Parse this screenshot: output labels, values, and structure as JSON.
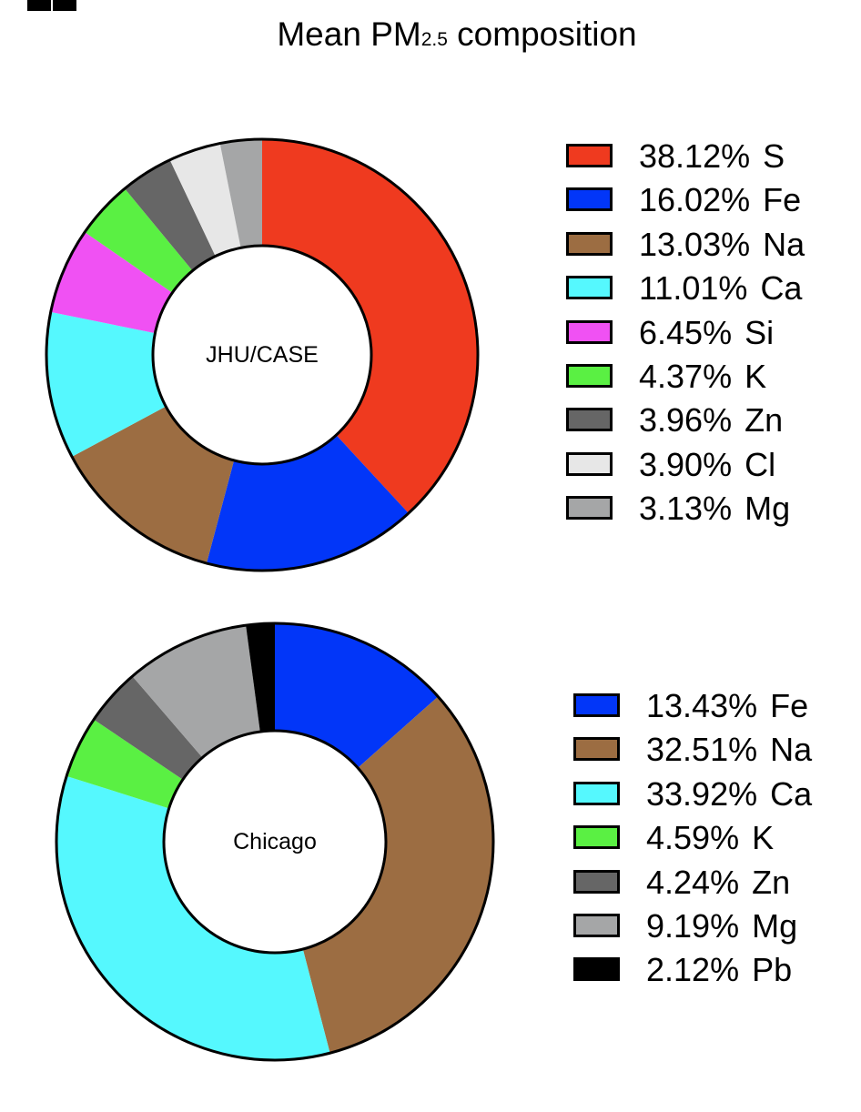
{
  "title": {
    "main": "Mean PM",
    "subscript": "2.5",
    "rest": " composition"
  },
  "colors": {
    "S": "#ef3a1f",
    "Fe": "#0236f8",
    "Na": "#9c6d42",
    "Ca": "#55f8fe",
    "Si": "#f051f3",
    "K": "#5af043",
    "Zn": "#666666",
    "Cl": "#e7e7e7",
    "Mg": "#a5a6a7",
    "Pb": "#000000"
  },
  "chart_data": [
    {
      "type": "pie",
      "donut": true,
      "center_label": "JHU/CASE",
      "slices": [
        {
          "element": "S",
          "value": 38.12,
          "label": "38.12%"
        },
        {
          "element": "Fe",
          "value": 16.02,
          "label": "16.02%"
        },
        {
          "element": "Na",
          "value": 13.03,
          "label": "13.03%"
        },
        {
          "element": "Ca",
          "value": 11.01,
          "label": "11.01%"
        },
        {
          "element": "Si",
          "value": 6.45,
          "label": "6.45%"
        },
        {
          "element": "K",
          "value": 4.37,
          "label": "4.37%"
        },
        {
          "element": "Zn",
          "value": 3.96,
          "label": "3.96%"
        },
        {
          "element": "Cl",
          "value": 3.9,
          "label": "3.90%"
        },
        {
          "element": "Mg",
          "value": 3.13,
          "label": "3.13%"
        }
      ],
      "legend_position": "right"
    },
    {
      "type": "pie",
      "donut": true,
      "center_label": "Chicago",
      "slices": [
        {
          "element": "Fe",
          "value": 13.43,
          "label": "13.43%"
        },
        {
          "element": "Na",
          "value": 32.51,
          "label": "32.51%"
        },
        {
          "element": "Ca",
          "value": 33.92,
          "label": "33.92%"
        },
        {
          "element": "K",
          "value": 4.59,
          "label": "4.59%"
        },
        {
          "element": "Zn",
          "value": 4.24,
          "label": "4.24%"
        },
        {
          "element": "Mg",
          "value": 9.19,
          "label": "9.19%"
        },
        {
          "element": "Pb",
          "value": 2.12,
          "label": "2.12%"
        }
      ],
      "legend_position": "right"
    }
  ]
}
